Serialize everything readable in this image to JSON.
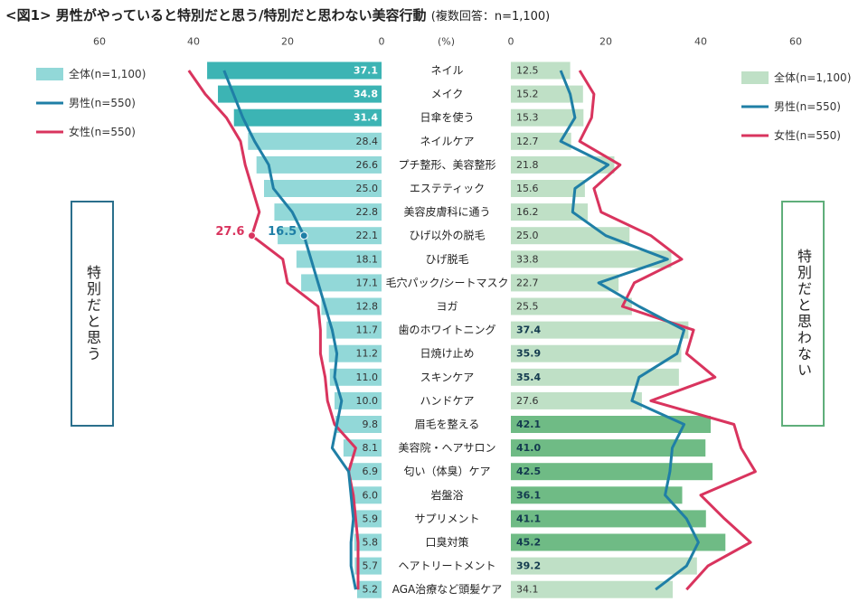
{
  "title": "<図1> 男性がやっていると特別だと思う/特別だと思わない美容行動",
  "subtitle": "(複数回答：n=1,100)",
  "box_left": "特別だと思う",
  "box_right": "特別だと思わない",
  "colors": {
    "left_bar": "#92d8d8",
    "left_bar_highlight": "#3cb4b4",
    "right_bar": "#bfe0c6",
    "right_bar_highlight": "#6fbb85",
    "male_line": "#1f7fa6",
    "female_line": "#d9345e",
    "box_left_border": "#2a6f8c",
    "box_right_border": "#5fae7a"
  },
  "chart_data": {
    "type": "bar",
    "unit_label": "(%)",
    "categories": [
      "ネイル",
      "メイク",
      "日傘を使う",
      "ネイルケア",
      "プチ整形、美容整形",
      "エステティック",
      "美容皮膚科に通う",
      "ひげ以外の脱毛",
      "ひげ脱毛",
      "毛穴パック/シートマスク",
      "ヨガ",
      "歯のホワイトニング",
      "日焼け止め",
      "スキンケア",
      "ハンドケア",
      "眉毛を整える",
      "美容院・ヘアサロン",
      "匂い（体臭）ケア",
      "岩盤浴",
      "サプリメント",
      "口臭対策",
      "ヘアトリートメント",
      "AGA治療など頭髪ケア"
    ],
    "left_axis_ticks": [
      "60",
      "40",
      "20",
      "0"
    ],
    "right_axis_ticks": [
      "0",
      "20",
      "40",
      "60"
    ],
    "axis_range": [
      0,
      60
    ],
    "left_panel": {
      "name": "特別だと思う",
      "total_values": [
        37.1,
        34.8,
        31.4,
        28.4,
        26.6,
        25.0,
        22.8,
        22.1,
        18.1,
        17.1,
        12.8,
        11.7,
        11.2,
        11.0,
        10.0,
        9.8,
        8.1,
        6.9,
        6.0,
        5.9,
        5.8,
        5.7,
        5.2
      ],
      "total_labels": [
        "37.1",
        "34.8",
        "31.4",
        "28.4",
        "26.6",
        "25.0",
        "22.8",
        "22.1",
        "18.1",
        "17.1",
        "12.8",
        "11.7",
        "11.2",
        "11.0",
        "10.0",
        "9.8",
        "8.1",
        "6.9",
        "6.0",
        "5.9",
        "5.8",
        "5.7",
        "5.2"
      ],
      "highlighted_indices": [
        0,
        1,
        2
      ],
      "male_values": [
        33.5,
        31.5,
        29.5,
        27.0,
        24.0,
        23.0,
        19.0,
        16.5,
        15.0,
        13.5,
        12.0,
        10.5,
        9.5,
        10.0,
        8.5,
        9.5,
        10.5,
        7.0,
        6.5,
        6.0,
        6.5,
        6.5,
        5.5
      ],
      "female_values": [
        41.0,
        37.5,
        33.0,
        30.0,
        29.0,
        27.5,
        26.0,
        27.6,
        21.0,
        20.0,
        13.5,
        13.0,
        13.0,
        12.0,
        11.5,
        10.0,
        5.5,
        7.0,
        6.0,
        5.5,
        5.0,
        5.0,
        5.0
      ],
      "callouts": [
        {
          "category_index": 7,
          "series": "female",
          "label": "27.6"
        },
        {
          "category_index": 7,
          "series": "male",
          "label": "16.5"
        }
      ]
    },
    "right_panel": {
      "name": "特別だと思わない",
      "total_values": [
        12.5,
        15.2,
        15.3,
        12.7,
        21.8,
        15.6,
        16.2,
        25.0,
        33.8,
        22.7,
        25.5,
        37.4,
        35.9,
        35.4,
        27.6,
        42.1,
        41.0,
        42.5,
        36.1,
        41.1,
        45.2,
        39.2,
        34.1
      ],
      "total_labels": [
        "12.5",
        "15.2",
        "15.3",
        "12.7",
        "21.8",
        "15.6",
        "16.2",
        "25.0",
        "33.8",
        "22.7",
        "25.5",
        "37.4",
        "35.9",
        "35.4",
        "27.6",
        "42.1",
        "41.0",
        "42.5",
        "36.1",
        "41.1",
        "45.2",
        "39.2",
        "34.1"
      ],
      "bold_indices": [
        11,
        12,
        13,
        15,
        16,
        17,
        18,
        19,
        20,
        21
      ],
      "highlighted_indices": [
        15,
        16,
        17,
        18,
        19,
        20
      ],
      "male_values": [
        10.5,
        12.5,
        13.5,
        10.5,
        20.5,
        13.5,
        13.0,
        20.0,
        33.0,
        18.5,
        27.0,
        36.5,
        35.0,
        27.0,
        25.5,
        36.5,
        34.0,
        33.5,
        32.5,
        37.0,
        39.5,
        37.0,
        30.5
      ],
      "female_values": [
        14.5,
        17.5,
        17.0,
        14.5,
        23.0,
        17.5,
        19.0,
        29.5,
        36.0,
        26.0,
        23.5,
        38.5,
        37.0,
        43.0,
        29.5,
        47.0,
        48.5,
        51.5,
        40.0,
        45.0,
        50.5,
        41.5,
        37.0
      ]
    },
    "legend": {
      "placement": "top-left and top-right",
      "entries": [
        "全体(n=1,100)",
        "男性(n=550)",
        "女性(n=550)"
      ]
    }
  }
}
